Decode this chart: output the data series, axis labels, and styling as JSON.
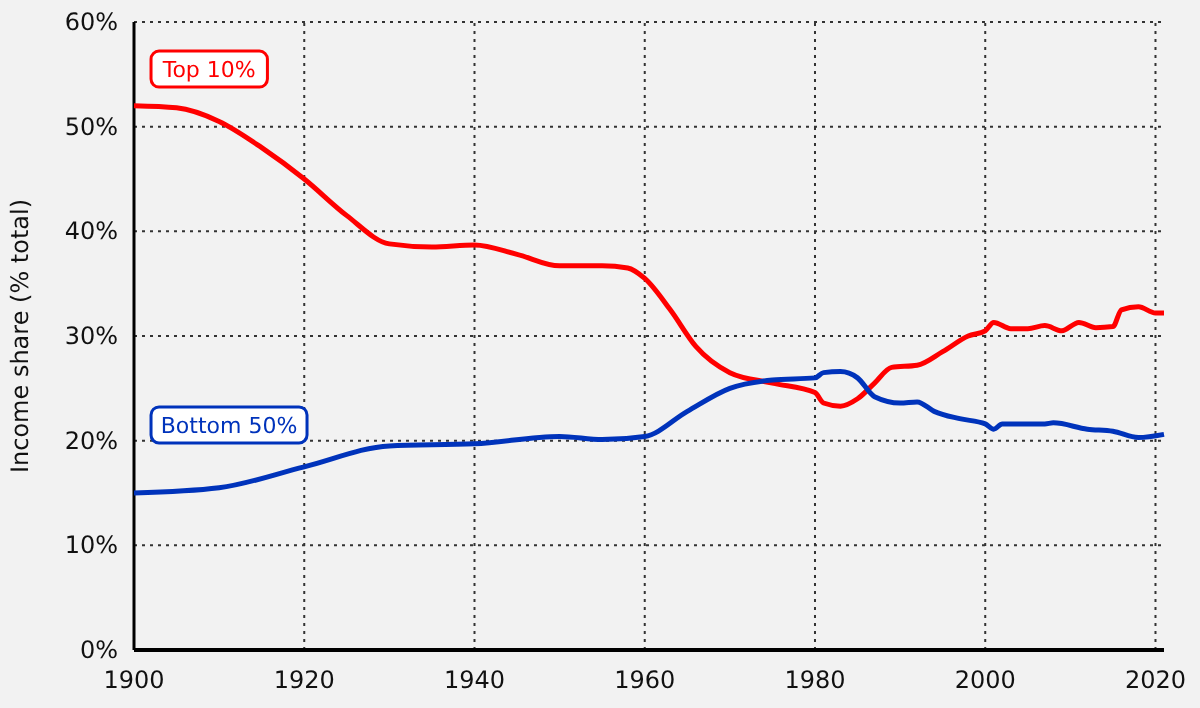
{
  "chart_data": {
    "type": "line",
    "ylabel": "Income share (% total)",
    "xlim": [
      1900,
      2021
    ],
    "xticks": [
      1900,
      1920,
      1940,
      1960,
      1980,
      2000,
      2020
    ],
    "ylim": [
      0,
      60
    ],
    "yticks": [
      {
        "value": 0,
        "label": "0%"
      },
      {
        "value": 10,
        "label": "10%"
      },
      {
        "value": 20,
        "label": "20%"
      },
      {
        "value": 30,
        "label": "30%"
      },
      {
        "value": 40,
        "label": "40%"
      },
      {
        "value": 50,
        "label": "50%"
      },
      {
        "value": 60,
        "label": "60%"
      }
    ],
    "grid": true,
    "line_style": "solid",
    "series": [
      {
        "name": "Top 10%",
        "color": "#ff0000",
        "x": [
          1900,
          1905,
          1910,
          1915,
          1920,
          1925,
          1930,
          1935,
          1940,
          1945,
          1950,
          1955,
          1958,
          1960,
          1963,
          1966,
          1970,
          1975,
          1980,
          1981,
          1983,
          1985,
          1987,
          1989,
          1992,
          1995,
          1998,
          2000,
          2001,
          2003,
          2005,
          2007,
          2009,
          2011,
          2013,
          2015,
          2016,
          2018,
          2020,
          2021
        ],
        "values": [
          52,
          51.8,
          50.5,
          48,
          45,
          41.5,
          38.8,
          38.5,
          38.7,
          37.8,
          36.7,
          36.7,
          36.5,
          35.5,
          32.5,
          29,
          26.5,
          25.5,
          24.6,
          23.6,
          23.3,
          24,
          25.5,
          27,
          27.2,
          28.5,
          30,
          30.5,
          31.3,
          30.7,
          30.7,
          31,
          30.5,
          31.3,
          30.8,
          30.9,
          32.5,
          32.8,
          32.2,
          32.2
        ]
      },
      {
        "name": "Bottom 50%",
        "color": "#0033bb",
        "x": [
          1900,
          1910,
          1920,
          1930,
          1940,
          1950,
          1955,
          1960,
          1965,
          1970,
          1975,
          1980,
          1981,
          1983,
          1985,
          1987,
          1990,
          1992,
          1994,
          1997,
          2000,
          2001,
          2002,
          2007,
          2008,
          2012,
          2015,
          2018,
          2021
        ],
        "values": [
          15,
          15.5,
          17.5,
          19.5,
          19.7,
          20.4,
          20.1,
          20.4,
          22.8,
          25,
          25.8,
          26,
          26.5,
          26.6,
          26,
          24.2,
          23.6,
          23.7,
          22.8,
          22.1,
          21.6,
          21.1,
          21.6,
          21.6,
          21.7,
          21.1,
          20.9,
          20.3,
          20.6
        ]
      }
    ]
  }
}
